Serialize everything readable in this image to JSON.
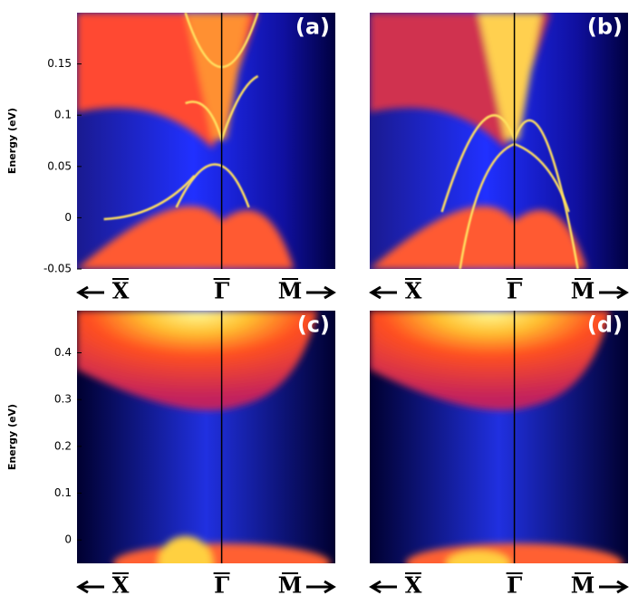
{
  "chart_data": [
    {
      "type": "heatmap",
      "panel_label": "(a)",
      "ylabel": "Energy (eV)",
      "ylim": [
        -0.05,
        0.2
      ],
      "yticks": [
        -0.05,
        0,
        0.05,
        0.1,
        0.15
      ],
      "categories": [
        "X",
        "Γ",
        "M"
      ]
    },
    {
      "type": "heatmap",
      "panel_label": "(b)",
      "ylim": [
        -0.05,
        0.2
      ],
      "categories": [
        "X",
        "Γ",
        "M"
      ]
    },
    {
      "type": "heatmap",
      "panel_label": "(c)",
      "ylabel": "Energy (eV)",
      "ylim": [
        -0.05,
        0.49
      ],
      "yticks": [
        0,
        0.1,
        0.2,
        0.3,
        0.4
      ],
      "categories": [
        "X",
        "Γ",
        "M"
      ]
    },
    {
      "type": "heatmap",
      "panel_label": "(d)",
      "ylim": [
        -0.05,
        0.49
      ],
      "categories": [
        "X",
        "Γ",
        "M"
      ]
    }
  ]
}
